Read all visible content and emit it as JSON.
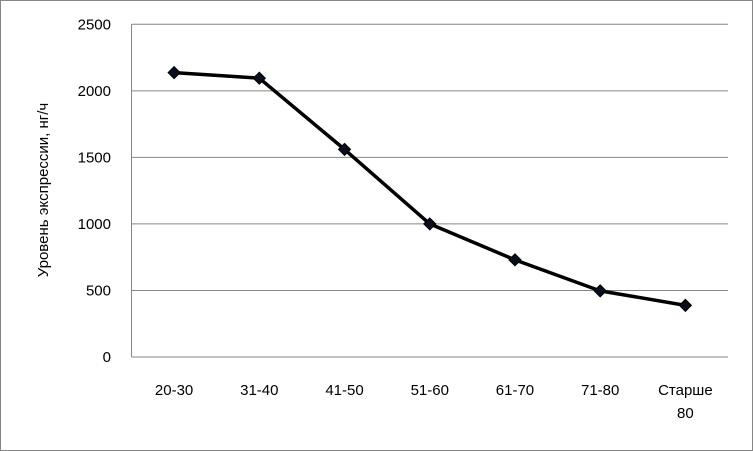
{
  "chart_data": {
    "type": "line",
    "title": "",
    "xlabel": "",
    "ylabel": "Уровень экспрессии, нг/ч",
    "categories": [
      "20-30",
      "31-40",
      "41-50",
      "51-60",
      "61-70",
      "71-80",
      "Старше 80"
    ],
    "series": [
      {
        "values": [
          2137,
          2095,
          1560,
          1000,
          730,
          497,
          388
        ],
        "color": "#000000",
        "marker": "diamond"
      }
    ],
    "ylim": [
      0,
      2500
    ],
    "yticks": [
      0,
      500,
      1000,
      1500,
      2000,
      2500
    ],
    "grid": "horizontal",
    "legend": "none"
  }
}
